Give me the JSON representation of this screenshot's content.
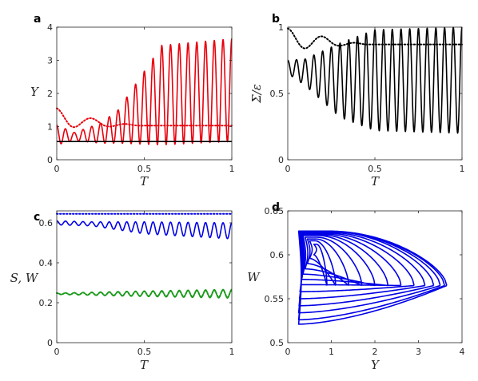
{
  "chart_data": [
    {
      "panel_label": "a",
      "type": "line",
      "xlabel": "T",
      "ylabel": "Y",
      "xlim": [
        0,
        1
      ],
      "ylim": [
        0,
        4
      ],
      "xticks": [
        "0",
        "0.5",
        "1"
      ],
      "yticks": [
        "0",
        "1",
        "2",
        "3",
        "4"
      ],
      "grid": false,
      "series": [
        {
          "style": "solid",
          "color": "#e8000b",
          "model": "oscillation",
          "n_cycles": 20,
          "mean": [
            0.75,
            0.7,
            0.8,
            1.0,
            1.95,
            2.1
          ],
          "amplitude": [
            0.3,
            0.12,
            0.3,
            0.5,
            1.5,
            1.55
          ],
          "t": [
            0,
            0.1,
            0.25,
            0.35,
            0.6,
            1.0
          ]
        },
        {
          "style": "solid",
          "color": "#000000",
          "model": "constant",
          "value": 0.55
        },
        {
          "style": "dotted",
          "color": "#e8000b",
          "model": "oscillation",
          "n_cycles": 5,
          "mean": [
            1.25,
            1.15,
            1.05,
            1.03
          ],
          "amplitude": [
            0.3,
            0.15,
            0.05,
            0.0
          ],
          "t": [
            0,
            0.15,
            0.35,
            0.5
          ]
        }
      ]
    },
    {
      "panel_label": "b",
      "type": "line",
      "xlabel": "T",
      "ylabel": "Σ/ε",
      "xlim": [
        0,
        1
      ],
      "ylim": [
        0,
        1
      ],
      "xticks": [
        "0",
        "0.5",
        "1"
      ],
      "yticks": [
        "0",
        "0.5",
        "1"
      ],
      "grid": false,
      "series": [
        {
          "style": "solid",
          "color": "#000000",
          "model": "oscillation",
          "n_cycles": 20,
          "mean": [
            0.7,
            0.66,
            0.6,
            0.6,
            0.6
          ],
          "amplitude": [
            0.05,
            0.1,
            0.28,
            0.38,
            0.4
          ],
          "t": [
            0,
            0.1,
            0.3,
            0.5,
            1.0
          ],
          "clip_max": 1.0
        },
        {
          "style": "dotted",
          "color": "#000000",
          "model": "oscillation",
          "n_cycles": 5,
          "mean": [
            0.91,
            0.9,
            0.88,
            0.87
          ],
          "amplitude": [
            0.08,
            0.06,
            0.02,
            0.0
          ],
          "t": [
            0,
            0.1,
            0.3,
            0.45
          ]
        }
      ]
    },
    {
      "panel_label": "c",
      "type": "line",
      "xlabel": "T",
      "ylabel": "S, W",
      "xlim": [
        0,
        1
      ],
      "ylim": [
        0,
        0.66
      ],
      "xticks": [
        "0",
        "0.5",
        "1"
      ],
      "yticks": [
        "0",
        "0.2",
        "0.4",
        "0.6"
      ],
      "grid": false,
      "series": [
        {
          "style": "dotted",
          "color": "#0000e6",
          "model": "constant",
          "value": 0.645
        },
        {
          "style": "solid",
          "color": "#0000e6",
          "model": "oscillation",
          "n_cycles": 20,
          "mean": [
            0.6,
            0.595,
            0.575,
            0.56
          ],
          "amplitude": [
            0.01,
            0.01,
            0.03,
            0.04
          ],
          "t": [
            0,
            0.2,
            0.5,
            1.0
          ]
        },
        {
          "style": "dotted",
          "color": "#1a9a1a",
          "model": "oscillation",
          "n_cycles": 20,
          "mean": [
            0.245,
            0.245,
            0.245
          ],
          "amplitude": [
            0.003,
            0.01,
            0.018
          ],
          "t": [
            0,
            0.4,
            1.0
          ]
        },
        {
          "style": "solid",
          "color": "#1a9a1a",
          "model": "oscillation",
          "n_cycles": 20,
          "mean": [
            0.245,
            0.245,
            0.245
          ],
          "amplitude": [
            0.003,
            0.012,
            0.022
          ],
          "t": [
            0,
            0.4,
            1.0
          ]
        }
      ]
    },
    {
      "panel_label": "d",
      "type": "line",
      "xlabel": "Y",
      "ylabel": "W",
      "xlim": [
        0,
        4
      ],
      "ylim": [
        0.5,
        0.65
      ],
      "xticks": [
        "0",
        "1",
        "2",
        "3",
        "4"
      ],
      "yticks": [
        "0.5",
        "0.55",
        "0.6",
        "0.65"
      ],
      "grid": false,
      "series": [
        {
          "style": "solid",
          "color": "#0000e6",
          "model": "phase_loops",
          "loops": [
            {
              "left": 0.6,
              "right": 0.9,
              "top": 0.612,
              "bottom": 0.6
            },
            {
              "left": 0.5,
              "right": 1.1,
              "top": 0.616,
              "bottom": 0.596
            },
            {
              "left": 0.45,
              "right": 1.4,
              "top": 0.618,
              "bottom": 0.59
            },
            {
              "left": 0.4,
              "right": 1.7,
              "top": 0.62,
              "bottom": 0.584
            },
            {
              "left": 0.35,
              "right": 2.0,
              "top": 0.622,
              "bottom": 0.578
            },
            {
              "left": 0.32,
              "right": 2.3,
              "top": 0.623,
              "bottom": 0.572
            },
            {
              "left": 0.3,
              "right": 2.6,
              "top": 0.624,
              "bottom": 0.566
            },
            {
              "left": 0.28,
              "right": 2.9,
              "top": 0.625,
              "bottom": 0.558
            },
            {
              "left": 0.27,
              "right": 3.15,
              "top": 0.626,
              "bottom": 0.55
            },
            {
              "left": 0.26,
              "right": 3.35,
              "top": 0.627,
              "bottom": 0.542
            },
            {
              "left": 0.25,
              "right": 3.5,
              "top": 0.627,
              "bottom": 0.534
            },
            {
              "left": 0.25,
              "right": 3.6,
              "top": 0.627,
              "bottom": 0.526
            },
            {
              "left": 0.25,
              "right": 3.65,
              "top": 0.627,
              "bottom": 0.521
            }
          ],
          "vertex_w": 0.565
        }
      ]
    }
  ]
}
